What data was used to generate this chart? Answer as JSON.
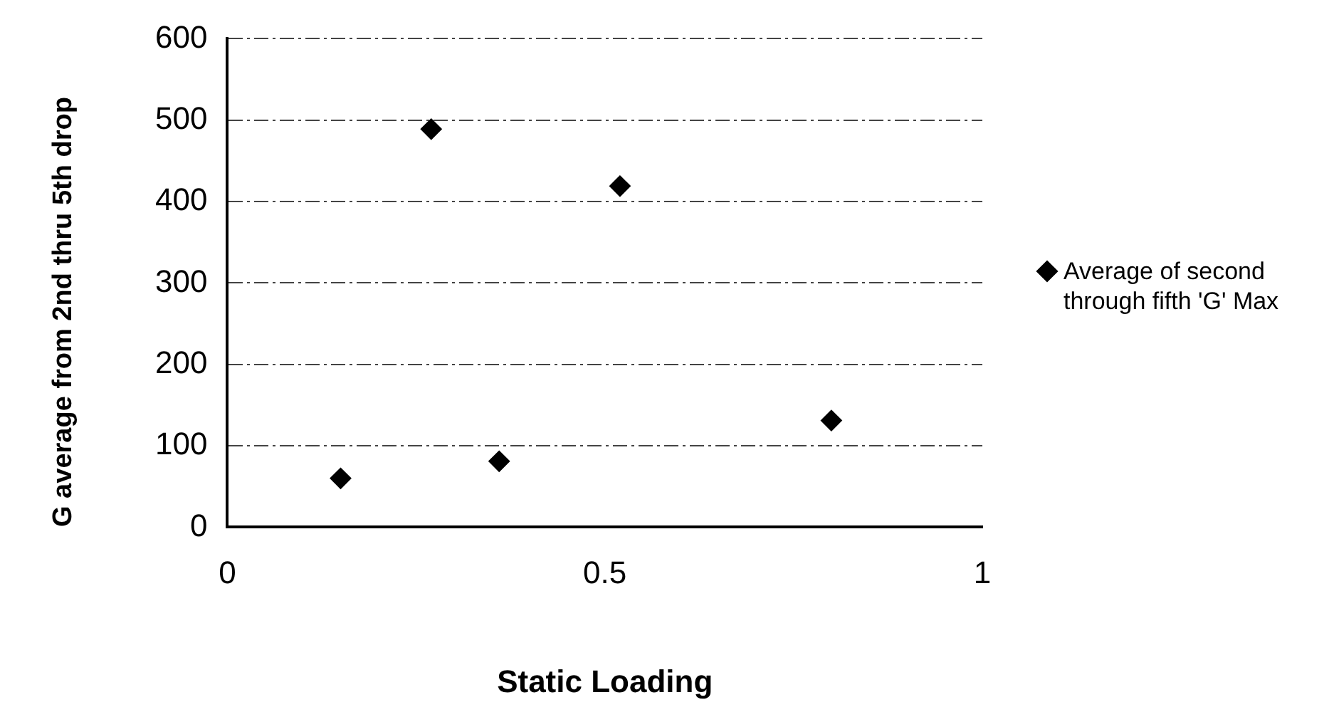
{
  "chart_data": {
    "type": "scatter",
    "xlabel": "Static Loading",
    "ylabel": "G average from 2nd thru 5th drop",
    "x": [
      0.15,
      0.27,
      0.36,
      0.52,
      0.8
    ],
    "series": [
      {
        "name": "Average of second through fifth 'G' Max",
        "color": "#000000",
        "values": [
          60,
          489,
          81,
          419,
          131
        ]
      }
    ],
    "xlim": [
      0,
      1
    ],
    "xticks": [
      0,
      0.5,
      1
    ],
    "ylim": [
      0,
      600
    ],
    "yticks": [
      0,
      100,
      200,
      300,
      400,
      500,
      600
    ],
    "grid": "y",
    "legend": "right",
    "marker": "diamond"
  }
}
